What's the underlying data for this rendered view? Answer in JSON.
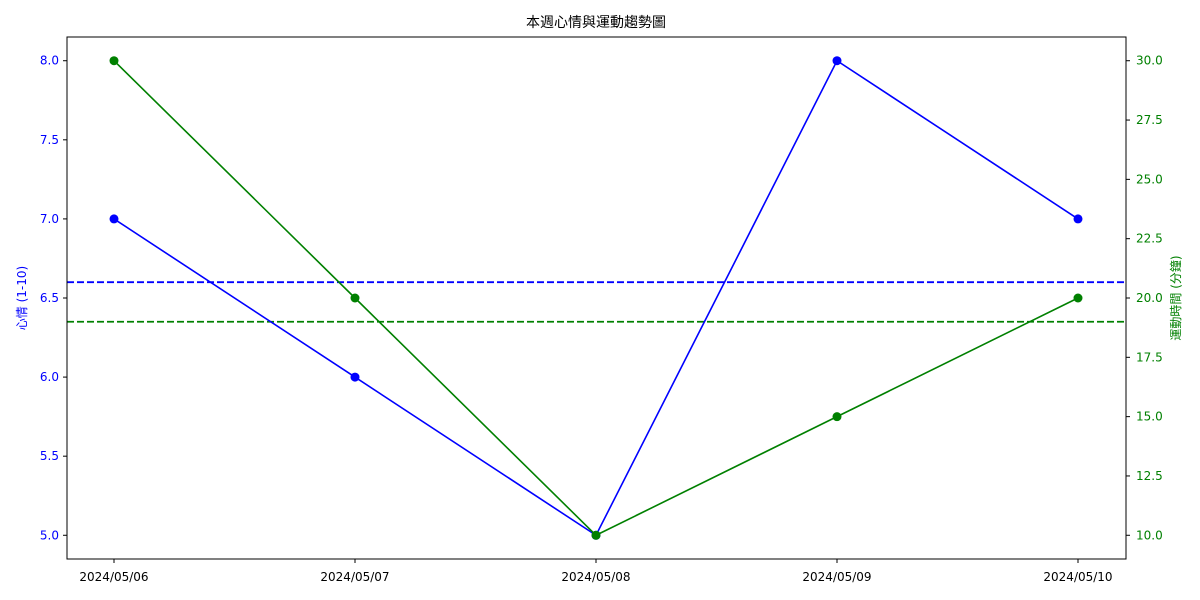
{
  "chart_data": {
    "type": "line",
    "title": "本週心情與運動趨勢圖",
    "categories": [
      "2024/05/06",
      "2024/05/07",
      "2024/05/08",
      "2024/05/09",
      "2024/05/10"
    ],
    "series": [
      {
        "values": [
          7,
          6,
          5,
          8,
          7
        ],
        "axis": "left",
        "color": "#0000ff",
        "marker": "circle"
      },
      {
        "values": [
          30,
          20,
          10,
          15,
          20
        ],
        "axis": "right",
        "color": "#008000",
        "marker": "circle"
      }
    ],
    "reference_lines": [
      {
        "axis": "left",
        "value": 6.6,
        "color": "#0000ff",
        "style": "dashed"
      },
      {
        "axis": "right",
        "value": 19,
        "color": "#008000",
        "style": "dashed"
      }
    ],
    "y_left": {
      "label": "心情 (1-10)",
      "color": "#0000ff",
      "ylim": [
        4.85,
        8.15
      ],
      "ticks": [
        "5.0",
        "5.5",
        "6.0",
        "6.5",
        "7.0",
        "7.5",
        "8.0"
      ]
    },
    "y_right": {
      "label": "運動時間 (分鐘)",
      "color": "#008000",
      "ylim": [
        9.0,
        31.0
      ],
      "ticks": [
        "10.0",
        "12.5",
        "15.0",
        "17.5",
        "20.0",
        "22.5",
        "25.0",
        "27.5",
        "30.0"
      ]
    },
    "grid": false,
    "legend": "none"
  }
}
